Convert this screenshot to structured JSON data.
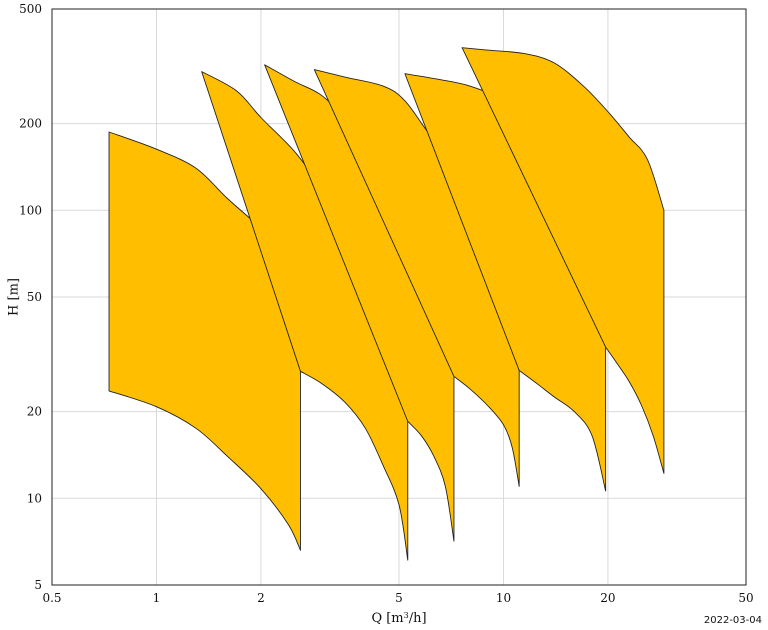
{
  "chart_data": {
    "type": "area",
    "x_scale": "log",
    "y_scale": "log",
    "xlabel": "Q [m³/h]",
    "ylabel": "H [m]",
    "xlim": [
      0.5,
      50
    ],
    "ylim": [
      5,
      500
    ],
    "x_ticks": [
      0.5,
      1,
      2,
      5,
      10,
      20,
      50
    ],
    "y_ticks": [
      5,
      10,
      20,
      50,
      100,
      200,
      500
    ],
    "x_tick_labels": [
      "0.5",
      "1",
      "2",
      "5",
      "10",
      "20",
      "50"
    ],
    "y_tick_labels": [
      "5",
      "10",
      "20",
      "50",
      "100",
      "200",
      "500"
    ],
    "grid": true,
    "fill_color": "#FFBF00",
    "edge_color": "#222222",
    "envelopes": [
      {
        "upper": [
          [
            0.73,
            187
          ],
          [
            1.0,
            163
          ],
          [
            1.3,
            140
          ],
          [
            1.6,
            110
          ],
          [
            2.0,
            87
          ],
          [
            2.4,
            72
          ],
          [
            2.6,
            53
          ]
        ],
        "lower": [
          [
            0.73,
            23.6
          ],
          [
            1.0,
            20.8
          ],
          [
            1.3,
            17.5
          ],
          [
            1.6,
            14.0
          ],
          [
            2.0,
            10.8
          ],
          [
            2.4,
            8.1
          ],
          [
            2.6,
            6.6
          ]
        ]
      },
      {
        "upper": [
          [
            1.35,
            303
          ],
          [
            1.7,
            260
          ],
          [
            2.0,
            210
          ],
          [
            2.5,
            160
          ],
          [
            3.0,
            120
          ],
          [
            3.7,
            90
          ],
          [
            4.3,
            70
          ],
          [
            5.3,
            48
          ]
        ],
        "lower": [
          [
            2.6,
            27.6
          ],
          [
            3.0,
            25.0
          ],
          [
            3.5,
            21.5
          ],
          [
            4.0,
            17.5
          ],
          [
            4.5,
            13.0
          ],
          [
            5.0,
            9.5
          ],
          [
            5.3,
            6.1
          ]
        ]
      },
      {
        "upper": [
          [
            2.05,
            320
          ],
          [
            2.5,
            280
          ],
          [
            3.0,
            250
          ],
          [
            3.6,
            200
          ],
          [
            4.3,
            150
          ],
          [
            5.5,
            110
          ],
          [
            6.4,
            80
          ],
          [
            7.2,
            55
          ]
        ],
        "lower": [
          [
            5.3,
            18.5
          ],
          [
            5.8,
            16.5
          ],
          [
            6.3,
            14.0
          ],
          [
            6.8,
            11.0
          ],
          [
            7.2,
            7.1
          ]
        ]
      },
      {
        "upper": [
          [
            2.85,
            308
          ],
          [
            3.5,
            290
          ],
          [
            4.5,
            270
          ],
          [
            5.2,
            240
          ],
          [
            6.2,
            180
          ],
          [
            7.5,
            140
          ],
          [
            9.0,
            110
          ],
          [
            11.1,
            86
          ]
        ],
        "lower": [
          [
            7.2,
            26.5
          ],
          [
            8.0,
            24.0
          ],
          [
            9.0,
            21.0
          ],
          [
            10.0,
            18.0
          ],
          [
            10.6,
            15.0
          ],
          [
            11.1,
            11.0
          ]
        ]
      },
      {
        "upper": [
          [
            5.2,
            298
          ],
          [
            6.5,
            285
          ],
          [
            8.0,
            270
          ],
          [
            10.0,
            240
          ],
          [
            12.5,
            190
          ],
          [
            15.0,
            160
          ],
          [
            18.0,
            130
          ],
          [
            19.7,
            85
          ]
        ],
        "lower": [
          [
            11.1,
            27.8
          ],
          [
            12.5,
            25.0
          ],
          [
            14.0,
            22.5
          ],
          [
            16.0,
            20.0
          ],
          [
            18.0,
            16.5
          ],
          [
            19.7,
            10.6
          ]
        ]
      },
      {
        "upper": [
          [
            7.6,
            367
          ],
          [
            9.0,
            360
          ],
          [
            11.5,
            350
          ],
          [
            14.0,
            325
          ],
          [
            17.0,
            270
          ],
          [
            20.0,
            220
          ],
          [
            23.0,
            180
          ],
          [
            26.0,
            150
          ],
          [
            29.0,
            100
          ]
        ],
        "lower": [
          [
            19.7,
            33.5
          ],
          [
            21.0,
            30.0
          ],
          [
            23.0,
            25.5
          ],
          [
            25.0,
            21.0
          ],
          [
            27.0,
            16.5
          ],
          [
            29.0,
            12.2
          ]
        ]
      }
    ]
  },
  "footer": {
    "date": "2022-03-04"
  }
}
